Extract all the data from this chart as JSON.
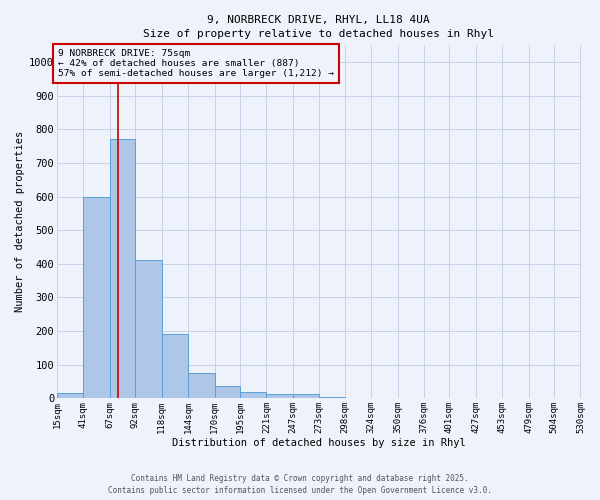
{
  "title_line1": "9, NORBRECK DRIVE, RHYL, LL18 4UA",
  "title_line2": "Size of property relative to detached houses in Rhyl",
  "bin_edges": [
    15,
    41,
    67,
    92,
    118,
    144,
    170,
    195,
    221,
    247,
    273,
    298,
    324,
    350,
    376,
    401,
    427,
    453,
    479,
    504,
    530
  ],
  "bin_labels": [
    "15sqm",
    "41sqm",
    "67sqm",
    "92sqm",
    "118sqm",
    "144sqm",
    "170sqm",
    "195sqm",
    "221sqm",
    "247sqm",
    "273sqm",
    "298sqm",
    "324sqm",
    "350sqm",
    "376sqm",
    "401sqm",
    "427sqm",
    "453sqm",
    "479sqm",
    "504sqm",
    "530sqm"
  ],
  "values": [
    15,
    600,
    770,
    410,
    190,
    75,
    37,
    18,
    12,
    12,
    5,
    0,
    0,
    0,
    0,
    0,
    0,
    0,
    0,
    0
  ],
  "bar_color": "#aec6e8",
  "bar_edge_color": "#5a9fd4",
  "property_size": 75,
  "red_line_color": "#cc0000",
  "ylim": [
    0,
    1050
  ],
  "yticks": [
    0,
    100,
    200,
    300,
    400,
    500,
    600,
    700,
    800,
    900,
    1000
  ],
  "xlabel": "Distribution of detached houses by size in Rhyl",
  "ylabel": "Number of detached properties",
  "annotation_line1": "9 NORBRECK DRIVE: 75sqm",
  "annotation_line2": "← 42% of detached houses are smaller (887)",
  "annotation_line3": "57% of semi-detached houses are larger (1,212) →",
  "annotation_box_color": "#cc0000",
  "bg_color": "#eef2fa",
  "grid_color": "#c8d0e8",
  "footer_line1": "Contains HM Land Registry data © Crown copyright and database right 2025.",
  "footer_line2": "Contains public sector information licensed under the Open Government Licence v3.0."
}
